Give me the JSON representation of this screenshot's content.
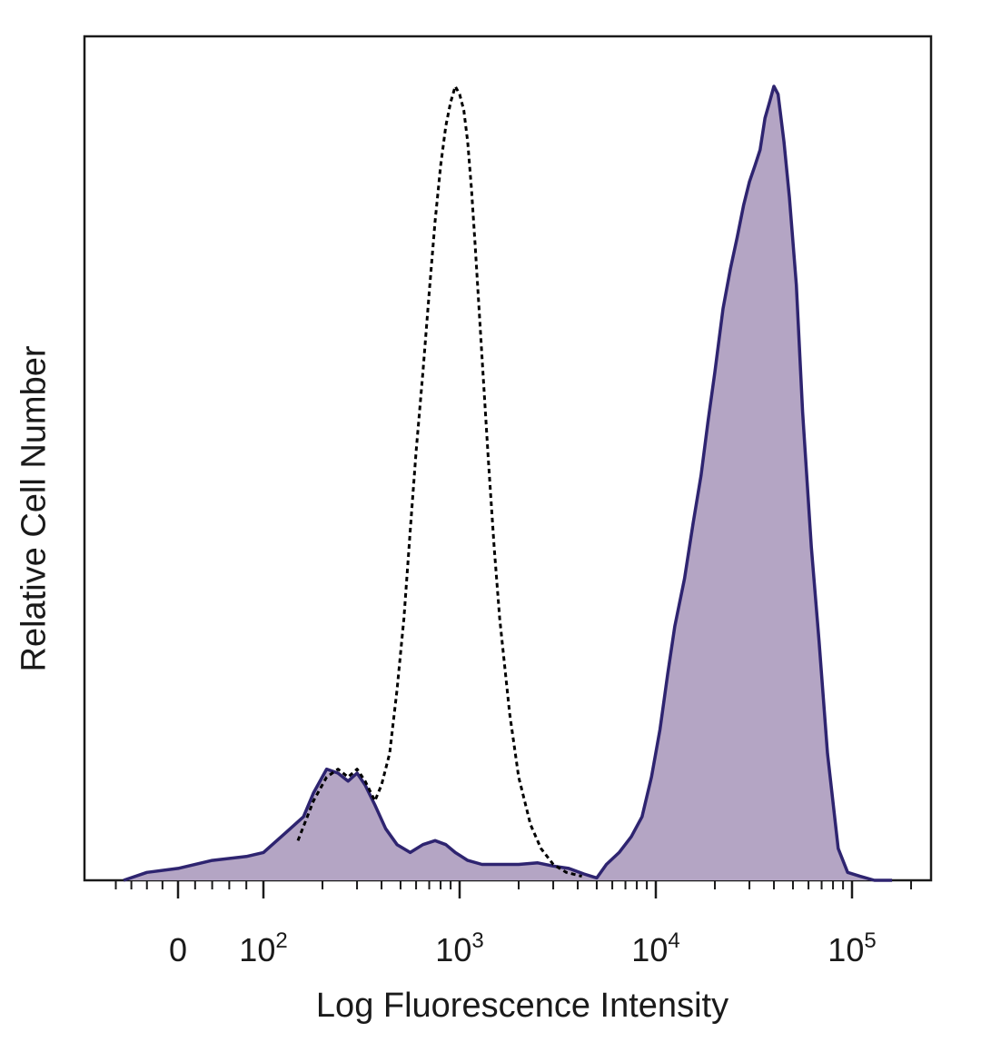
{
  "chart_data": {
    "type": "area",
    "xlabel": "Log Fluorescence Intensity",
    "ylabel": "Relative Cell Number",
    "x_scale": "biexponential (log above 10^2)",
    "y_range": [
      0,
      100
    ],
    "grid": false,
    "legend": "none",
    "x_ticks": [
      {
        "value": 0,
        "base": "0",
        "exp": ""
      },
      {
        "value": 100,
        "base": "10",
        "exp": "2"
      },
      {
        "value": 1000,
        "base": "10",
        "exp": "3"
      },
      {
        "value": 10000,
        "base": "10",
        "exp": "4"
      },
      {
        "value": 100000,
        "base": "10",
        "exp": "5"
      }
    ],
    "series": [
      {
        "style": "filled",
        "fill": "#b4a5c4",
        "stroke": "#2e2470",
        "x": [
          -70,
          -40,
          0,
          40,
          80,
          100,
          130,
          160,
          180,
          210,
          240,
          270,
          300,
          330,
          370,
          420,
          480,
          560,
          650,
          750,
          850,
          950,
          1100,
          1300,
          1600,
          2000,
          2500,
          3000,
          3600,
          4300,
          5000,
          5600,
          6500,
          7500,
          8500,
          9500,
          10500,
          11500,
          12500,
          14000,
          15500,
          17000,
          18500,
          20000,
          22000,
          24000,
          26000,
          28000,
          30000,
          32000,
          34000,
          36000,
          38000,
          40000,
          42000,
          45000,
          48000,
          52000,
          56000,
          62000,
          68000,
          75000,
          85000,
          95000,
          110000,
          130000,
          160000
        ],
        "y": [
          0,
          1,
          1.5,
          2.5,
          3,
          3.5,
          6,
          8,
          11,
          14,
          13.5,
          12.5,
          13.5,
          12,
          9.5,
          6.5,
          4.5,
          3.5,
          4.5,
          5,
          4.5,
          3.5,
          2.5,
          2,
          2,
          2,
          2.2,
          1.8,
          1.5,
          0.8,
          0.3,
          2,
          3.5,
          5.5,
          8,
          13,
          19,
          26,
          32,
          38,
          45,
          51,
          58,
          64,
          72,
          77,
          81,
          85,
          88,
          90,
          92,
          96,
          98,
          100,
          99,
          93,
          86,
          75,
          59,
          42,
          30,
          16,
          4,
          1,
          0.5,
          0,
          0
        ]
      },
      {
        "style": "dashed",
        "stroke": "#000000",
        "x": [
          150,
          180,
          210,
          240,
          270,
          300,
          330,
          370,
          400,
          440,
          480,
          520,
          560,
          600,
          650,
          700,
          750,
          800,
          850,
          900,
          950,
          1000,
          1050,
          1100,
          1150,
          1200,
          1300,
          1400,
          1500,
          1600,
          1800,
          2000,
          2300,
          2600,
          3000,
          3500,
          4200
        ],
        "y": [
          5,
          10,
          13,
          14,
          13,
          14,
          12.5,
          10,
          12,
          16,
          24,
          33,
          44,
          54,
          64,
          74,
          83,
          90,
          95,
          98,
          100,
          99,
          97,
          93,
          87,
          80,
          66,
          53,
          42,
          33,
          21,
          13,
          7,
          4,
          2,
          1,
          0.5
        ]
      }
    ]
  }
}
